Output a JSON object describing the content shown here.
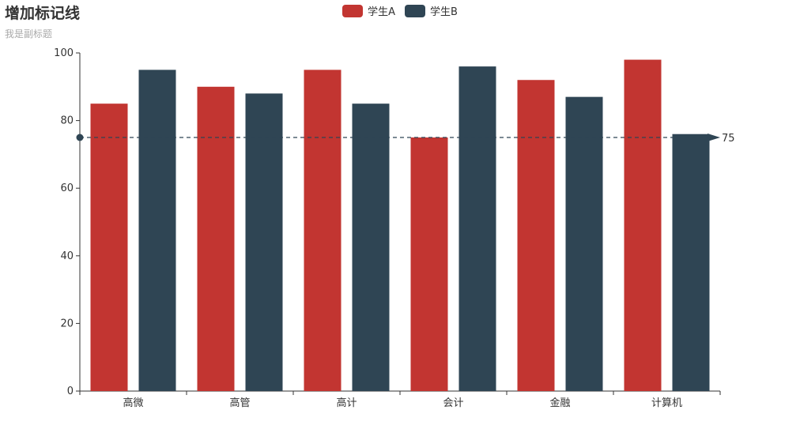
{
  "chart_data": {
    "type": "bar",
    "title": "增加标记线",
    "subtitle": "我是副标题",
    "categories": [
      "高微",
      "高管",
      "高计",
      "会计",
      "金融",
      "计算机"
    ],
    "series": [
      {
        "name": "学生A",
        "color": "#c23531",
        "values": [
          85,
          90,
          95,
          75,
          92,
          98
        ]
      },
      {
        "name": "学生B",
        "color": "#2f4554",
        "values": [
          95,
          88,
          85,
          96,
          87,
          76
        ]
      }
    ],
    "ylim": [
      0,
      100
    ],
    "yticks": [
      0,
      20,
      40,
      60,
      80,
      100
    ],
    "markline": {
      "value": 75,
      "label": "75",
      "color": "#2f4554"
    },
    "legend_position": "top-center",
    "grid": false
  }
}
